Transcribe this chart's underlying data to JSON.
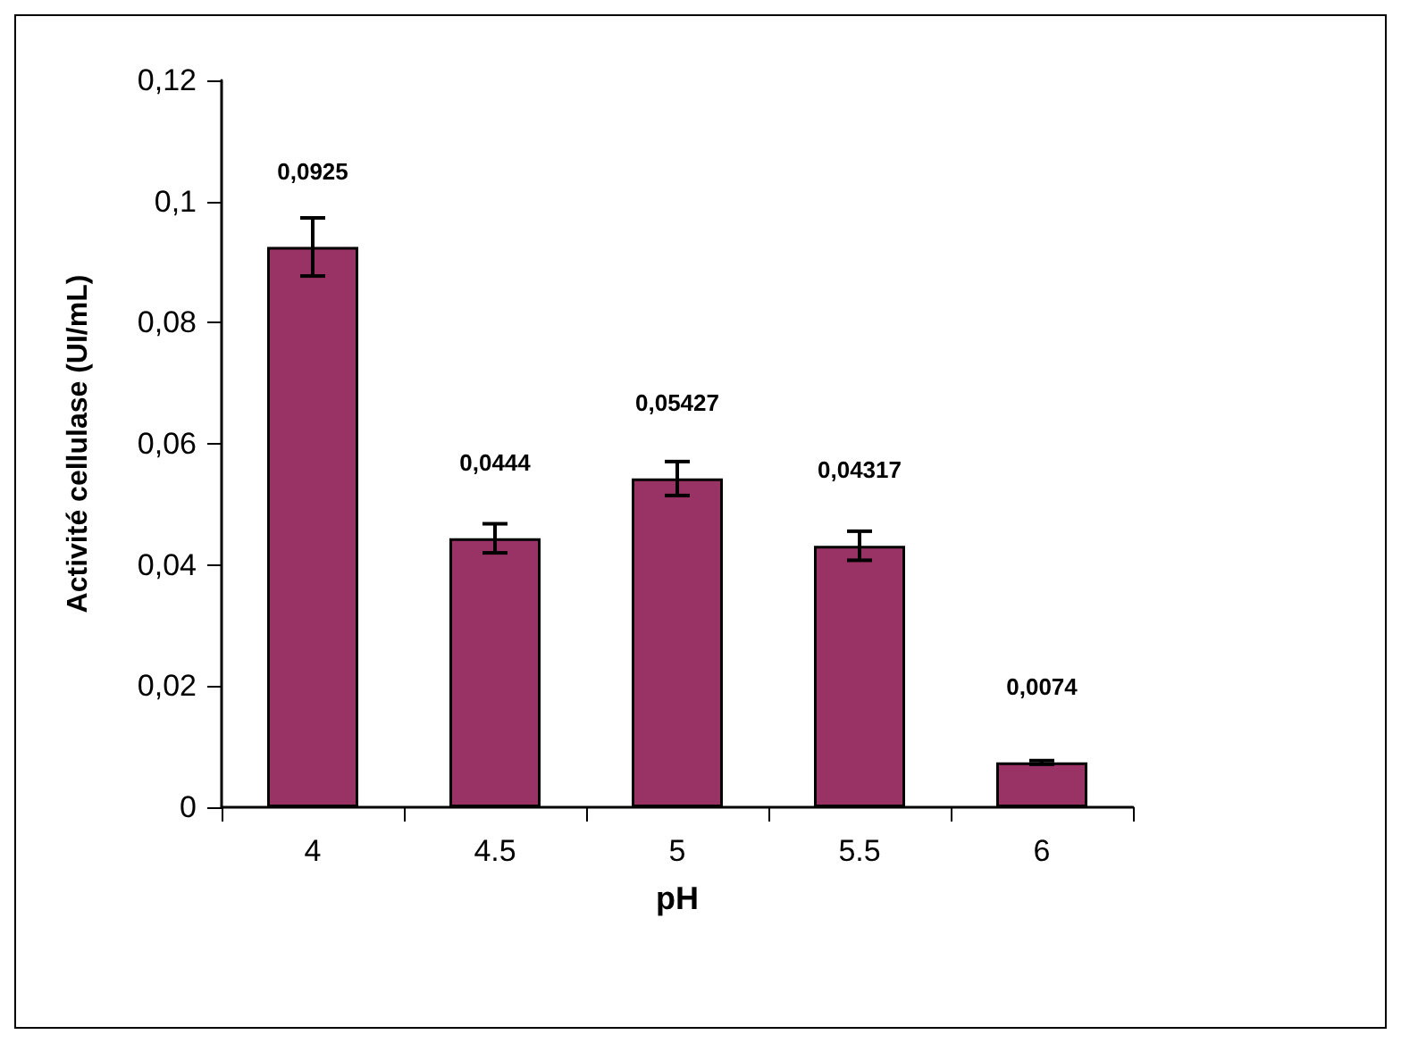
{
  "chart_data": {
    "type": "bar",
    "xlabel": "pH",
    "ylabel": "Activité cellulase (UI/mL)",
    "categories": [
      "4",
      "4.5",
      "5",
      "5.5",
      "6"
    ],
    "values": [
      0.0925,
      0.0444,
      0.05427,
      0.04317,
      0.0074
    ],
    "errors": [
      0.0048,
      0.0024,
      0.0028,
      0.0024,
      0.0003
    ],
    "value_labels": [
      "0,0925",
      "0,0444",
      "0,05427",
      "0,04317",
      "0,0074"
    ],
    "color": "#993366",
    "ylim": [
      0,
      0.12
    ],
    "yticks": [
      {
        "value": 0,
        "label": "0"
      },
      {
        "value": 0.02,
        "label": "0,02"
      },
      {
        "value": 0.04,
        "label": "0,04"
      },
      {
        "value": 0.06,
        "label": "0,06"
      },
      {
        "value": 0.08,
        "label": "0,08"
      },
      {
        "value": 0.1,
        "label": "0,1"
      },
      {
        "value": 0.12,
        "label": "0,12"
      }
    ],
    "grid": false
  }
}
